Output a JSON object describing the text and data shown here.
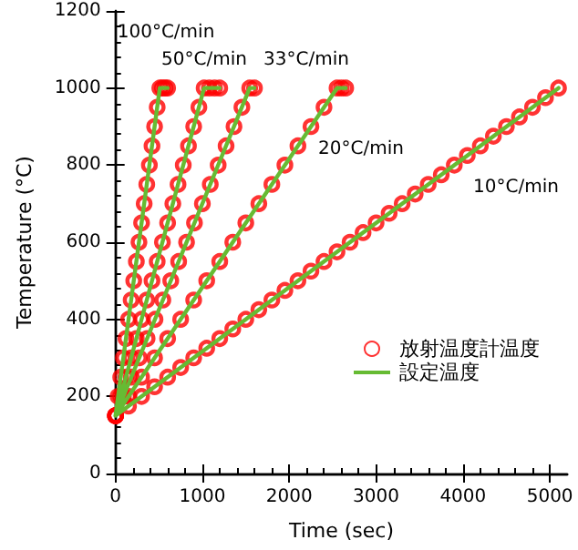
{
  "chart_data": {
    "type": "line",
    "xlabel": "Time (sec)",
    "ylabel": "Temperature (°C)",
    "xlim": [
      0,
      5200
    ],
    "xticks": [
      0,
      1000,
      2000,
      3000,
      4000,
      5000
    ],
    "ylim": [
      0,
      1200
    ],
    "yticks": [
      0,
      200,
      400,
      600,
      800,
      1000,
      1200
    ],
    "grid": false,
    "legend": "bottom right",
    "series": [
      {
        "type": "scatter",
        "name": "放射温度計温度",
        "color": "#ff0000",
        "marker": "circle",
        "x": [
          0,
          30,
          60,
          90,
          120,
          150,
          180,
          210,
          240,
          270,
          300,
          330,
          360,
          390,
          420,
          450,
          480,
          510,
          540,
          570,
          600,
          0,
          60,
          120,
          180,
          240,
          300,
          360,
          420,
          480,
          540,
          600,
          660,
          720,
          780,
          840,
          900,
          960,
          1020,
          1080,
          1140,
          1200,
          0,
          91,
          182,
          273,
          364,
          455,
          545,
          636,
          727,
          818,
          909,
          1000,
          1091,
          1182,
          1273,
          1364,
          1455,
          1545,
          1600,
          0,
          150,
          300,
          450,
          600,
          750,
          900,
          1050,
          1200,
          1350,
          1500,
          1650,
          1800,
          1950,
          2100,
          2250,
          2400,
          2550,
          2600,
          2650,
          0,
          150,
          300,
          450,
          600,
          750,
          900,
          1050,
          1200,
          1350,
          1500,
          1650,
          1800,
          1950,
          2100,
          2250,
          2400,
          2550,
          2700,
          2850,
          3000,
          3150,
          3300,
          3450,
          3600,
          3750,
          3900,
          4050,
          4200,
          4350,
          4500,
          4650,
          4800,
          4950,
          5100
        ],
        "values": [
          150,
          200,
          250,
          300,
          350,
          400,
          450,
          500,
          550,
          600,
          650,
          700,
          750,
          800,
          850,
          900,
          950,
          1000,
          1000,
          1000,
          1000,
          150,
          200,
          250,
          300,
          350,
          400,
          450,
          500,
          550,
          600,
          650,
          700,
          750,
          800,
          850,
          900,
          950,
          1000,
          1000,
          1000,
          1000,
          150,
          200,
          250,
          300,
          350,
          400,
          450,
          500,
          550,
          600,
          650,
          700,
          750,
          800,
          850,
          900,
          950,
          1000,
          1000,
          150,
          200,
          250,
          300,
          350,
          400,
          450,
          500,
          550,
          600,
          650,
          700,
          750,
          800,
          850,
          900,
          950,
          1000,
          1000,
          1000,
          150,
          175,
          200,
          225,
          250,
          275,
          300,
          325,
          350,
          375,
          400,
          425,
          450,
          475,
          500,
          525,
          550,
          575,
          600,
          625,
          650,
          675,
          700,
          725,
          750,
          775,
          800,
          825,
          850,
          875,
          900,
          925,
          950,
          975,
          1000
        ]
      },
      {
        "name": "設定温度",
        "color": "#66bb33",
        "marker": "none",
        "line_style": "solid",
        "x": [
          0,
          510,
          600,
          null,
          0,
          1020,
          1200,
          null,
          0,
          1545,
          1600,
          null,
          0,
          2550,
          2650,
          null,
          0,
          5100
        ],
        "values": [
          150,
          1000,
          1000,
          null,
          150,
          1000,
          1000,
          null,
          150,
          1000,
          1000,
          null,
          150,
          1000,
          1000,
          null,
          150,
          1000
        ]
      }
    ],
    "annotations": [
      "100°C/min",
      "50°C/min",
      "33°C/min",
      "20°C/min",
      "10°C/min"
    ]
  }
}
